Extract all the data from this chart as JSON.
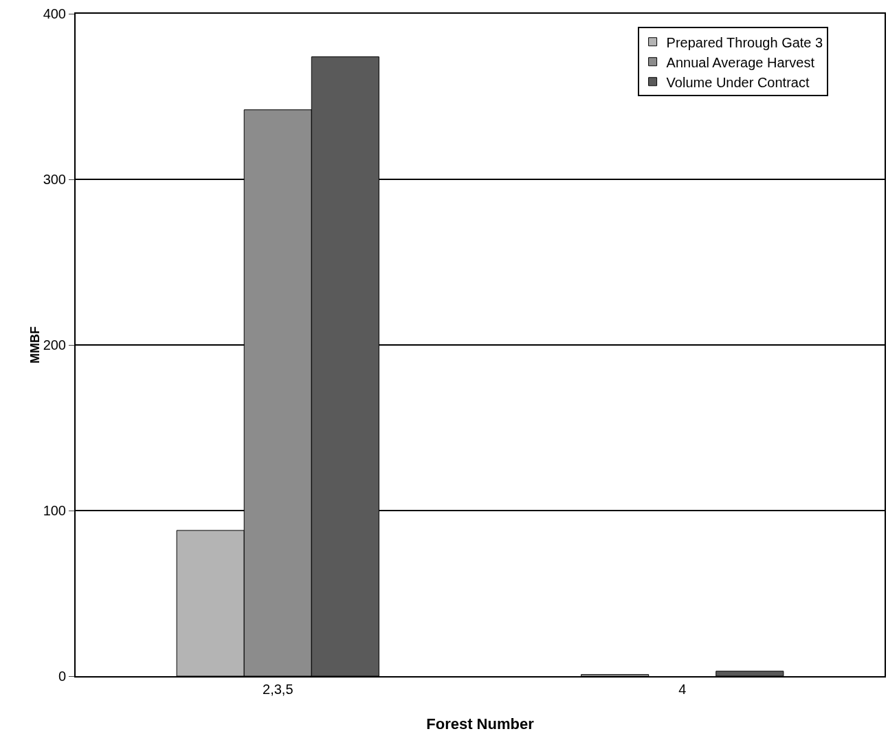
{
  "chart_data": {
    "type": "bar",
    "xlabel": "Forest Number",
    "ylabel": "MMBF",
    "categories": [
      "2,3,5",
      "4"
    ],
    "series": [
      {
        "name": "Prepared Through Gate 3",
        "color": "#b4b4b4",
        "values": [
          88,
          1
        ]
      },
      {
        "name": "Annual Average Harvest",
        "color": "#8c8c8c",
        "values": [
          342,
          0
        ]
      },
      {
        "name": "Volume Under Contract",
        "color": "#5a5a5a",
        "values": [
          374,
          3
        ]
      }
    ],
    "ylim": [
      0,
      400
    ],
    "yticks": [
      0,
      100,
      200,
      300,
      400
    ],
    "grid": "y",
    "legend": "top right"
  }
}
